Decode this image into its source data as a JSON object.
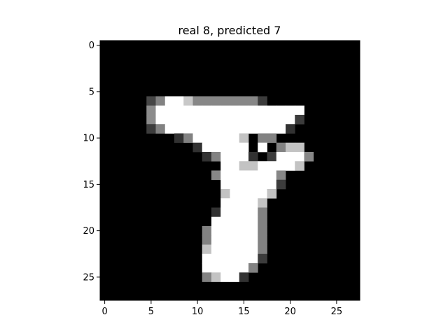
{
  "title": "real 8, predicted 7",
  "image": {
    "rows": 28,
    "cols": 28,
    "cmap": "gray",
    "background": "#000000",
    "pixels": [
      [
        0,
        0,
        0,
        0,
        0,
        0,
        0,
        0,
        0,
        0,
        0,
        0,
        0,
        0,
        0,
        0,
        0,
        0,
        0,
        0,
        0,
        0,
        0,
        0,
        0,
        0,
        0,
        0
      ],
      [
        0,
        0,
        0,
        0,
        0,
        0,
        0,
        0,
        0,
        0,
        0,
        0,
        0,
        0,
        0,
        0,
        0,
        0,
        0,
        0,
        0,
        0,
        0,
        0,
        0,
        0,
        0,
        0
      ],
      [
        0,
        0,
        0,
        0,
        0,
        0,
        0,
        0,
        0,
        0,
        0,
        0,
        0,
        0,
        0,
        0,
        0,
        0,
        0,
        0,
        0,
        0,
        0,
        0,
        0,
        0,
        0,
        0
      ],
      [
        0,
        0,
        0,
        0,
        0,
        0,
        0,
        0,
        0,
        0,
        0,
        0,
        0,
        0,
        0,
        0,
        0,
        0,
        0,
        0,
        0,
        0,
        0,
        0,
        0,
        0,
        0,
        0
      ],
      [
        0,
        0,
        0,
        0,
        0,
        0,
        0,
        0,
        0,
        0,
        0,
        0,
        0,
        0,
        0,
        0,
        0,
        0,
        0,
        0,
        0,
        0,
        0,
        0,
        0,
        0,
        0,
        0
      ],
      [
        0,
        0,
        0,
        0,
        0,
        0,
        0,
        0,
        0,
        0,
        0,
        0,
        0,
        0,
        0,
        0,
        0,
        0,
        0,
        0,
        0,
        0,
        0,
        0,
        0,
        0,
        0,
        0
      ],
      [
        0,
        0,
        0,
        0,
        0,
        70,
        130,
        255,
        255,
        200,
        135,
        135,
        135,
        135,
        135,
        135,
        135,
        60,
        0,
        0,
        0,
        0,
        0,
        0,
        0,
        0,
        0,
        0
      ],
      [
        0,
        0,
        0,
        0,
        0,
        140,
        255,
        255,
        255,
        255,
        255,
        255,
        255,
        255,
        255,
        255,
        255,
        255,
        255,
        255,
        255,
        255,
        0,
        0,
        0,
        0,
        0,
        0
      ],
      [
        0,
        0,
        0,
        0,
        0,
        140,
        255,
        255,
        255,
        255,
        255,
        255,
        255,
        255,
        255,
        255,
        255,
        255,
        255,
        255,
        255,
        60,
        0,
        0,
        0,
        0,
        0,
        0
      ],
      [
        0,
        0,
        0,
        0,
        0,
        60,
        130,
        255,
        255,
        255,
        255,
        255,
        255,
        255,
        255,
        255,
        255,
        255,
        255,
        255,
        50,
        0,
        0,
        0,
        0,
        0,
        0,
        0
      ],
      [
        0,
        0,
        0,
        0,
        0,
        0,
        0,
        0,
        50,
        130,
        255,
        255,
        255,
        255,
        255,
        195,
        0,
        130,
        130,
        0,
        0,
        0,
        0,
        0,
        0,
        0,
        0,
        0
      ],
      [
        0,
        0,
        0,
        0,
        0,
        0,
        0,
        0,
        0,
        0,
        50,
        255,
        255,
        255,
        255,
        255,
        0,
        255,
        0,
        130,
        195,
        195,
        0,
        0,
        0,
        0,
        0,
        0
      ],
      [
        0,
        0,
        0,
        0,
        0,
        0,
        0,
        0,
        0,
        0,
        0,
        50,
        130,
        255,
        255,
        255,
        50,
        0,
        60,
        255,
        255,
        255,
        135,
        0,
        0,
        0,
        0,
        0
      ],
      [
        0,
        0,
        0,
        0,
        0,
        0,
        0,
        0,
        0,
        0,
        0,
        0,
        0,
        255,
        255,
        195,
        195,
        255,
        255,
        255,
        255,
        195,
        0,
        0,
        0,
        0,
        0,
        0
      ],
      [
        0,
        0,
        0,
        0,
        0,
        0,
        0,
        0,
        0,
        0,
        0,
        0,
        135,
        255,
        255,
        255,
        255,
        255,
        255,
        135,
        0,
        0,
        0,
        0,
        0,
        0,
        0,
        0
      ],
      [
        0,
        0,
        0,
        0,
        0,
        0,
        0,
        0,
        0,
        0,
        0,
        0,
        0,
        255,
        255,
        255,
        255,
        255,
        255,
        60,
        0,
        0,
        0,
        0,
        0,
        0,
        0,
        0
      ],
      [
        0,
        0,
        0,
        0,
        0,
        0,
        0,
        0,
        0,
        0,
        0,
        0,
        0,
        195,
        255,
        255,
        255,
        255,
        195,
        0,
        0,
        0,
        0,
        0,
        0,
        0,
        0,
        0
      ],
      [
        0,
        0,
        0,
        0,
        0,
        0,
        0,
        0,
        0,
        0,
        0,
        0,
        0,
        255,
        255,
        255,
        255,
        195,
        0,
        0,
        0,
        0,
        0,
        0,
        0,
        0,
        0,
        0
      ],
      [
        0,
        0,
        0,
        0,
        0,
        0,
        0,
        0,
        0,
        0,
        0,
        0,
        50,
        255,
        255,
        255,
        255,
        130,
        0,
        0,
        0,
        0,
        0,
        0,
        0,
        0,
        0,
        0
      ],
      [
        0,
        0,
        0,
        0,
        0,
        0,
        0,
        0,
        0,
        0,
        0,
        0,
        255,
        255,
        255,
        255,
        255,
        130,
        0,
        0,
        0,
        0,
        0,
        0,
        0,
        0,
        0,
        0
      ],
      [
        0,
        0,
        0,
        0,
        0,
        0,
        0,
        0,
        0,
        0,
        0,
        130,
        255,
        255,
        255,
        255,
        255,
        130,
        0,
        0,
        0,
        0,
        0,
        0,
        0,
        0,
        0,
        0
      ],
      [
        0,
        0,
        0,
        0,
        0,
        0,
        0,
        0,
        0,
        0,
        0,
        130,
        255,
        255,
        255,
        255,
        255,
        130,
        0,
        0,
        0,
        0,
        0,
        0,
        0,
        0,
        0,
        0
      ],
      [
        0,
        0,
        0,
        0,
        0,
        0,
        0,
        0,
        0,
        0,
        0,
        195,
        255,
        255,
        255,
        255,
        255,
        130,
        0,
        0,
        0,
        0,
        0,
        0,
        0,
        0,
        0,
        0
      ],
      [
        0,
        0,
        0,
        0,
        0,
        0,
        0,
        0,
        0,
        0,
        0,
        255,
        255,
        255,
        255,
        255,
        255,
        60,
        0,
        0,
        0,
        0,
        0,
        0,
        0,
        0,
        0,
        0
      ],
      [
        0,
        0,
        0,
        0,
        0,
        0,
        0,
        0,
        0,
        0,
        0,
        255,
        255,
        255,
        255,
        255,
        130,
        0,
        0,
        0,
        0,
        0,
        0,
        0,
        0,
        0,
        0,
        0
      ],
      [
        0,
        0,
        0,
        0,
        0,
        0,
        0,
        0,
        0,
        0,
        0,
        130,
        195,
        255,
        255,
        50,
        0,
        0,
        0,
        0,
        0,
        0,
        0,
        0,
        0,
        0,
        0,
        0
      ],
      [
        0,
        0,
        0,
        0,
        0,
        0,
        0,
        0,
        0,
        0,
        0,
        0,
        0,
        0,
        0,
        0,
        0,
        0,
        0,
        0,
        0,
        0,
        0,
        0,
        0,
        0,
        0,
        0
      ],
      [
        0,
        0,
        0,
        0,
        0,
        0,
        0,
        0,
        0,
        0,
        0,
        0,
        0,
        0,
        0,
        0,
        0,
        0,
        0,
        0,
        0,
        0,
        0,
        0,
        0,
        0,
        0,
        0
      ]
    ]
  },
  "x_ticks": [
    {
      "value": 0,
      "label": "0"
    },
    {
      "value": 5,
      "label": "5"
    },
    {
      "value": 10,
      "label": "10"
    },
    {
      "value": 15,
      "label": "15"
    },
    {
      "value": 20,
      "label": "20"
    },
    {
      "value": 25,
      "label": "25"
    }
  ],
  "y_ticks": [
    {
      "value": 0,
      "label": "0"
    },
    {
      "value": 5,
      "label": "5"
    },
    {
      "value": 10,
      "label": "10"
    },
    {
      "value": 15,
      "label": "15"
    },
    {
      "value": 20,
      "label": "20"
    },
    {
      "value": 25,
      "label": "25"
    }
  ]
}
